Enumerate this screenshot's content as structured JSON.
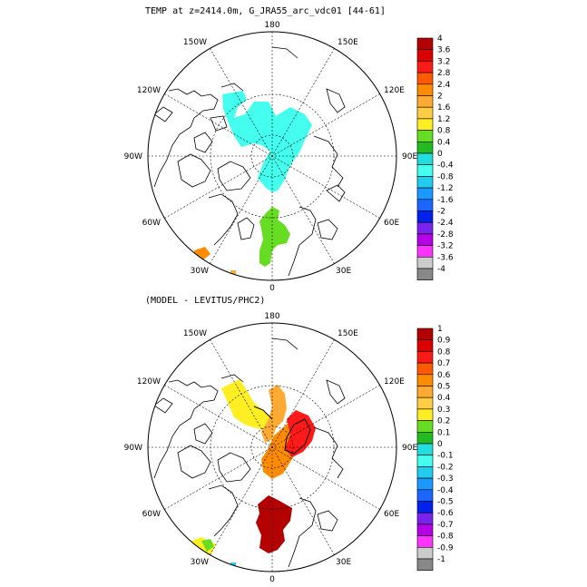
{
  "panels": [
    {
      "title": "TEMP at z=2414.0m, G_JRA55_arc_vdc01 [44-61]",
      "lon_labels": {
        "n": "180",
        "s": "0",
        "w": "90W",
        "e": "90E",
        "nw2": "150W",
        "nw1": "120W",
        "sw1": "60W",
        "sw2": "30W",
        "ne2": "150E",
        "ne1": "120E",
        "se1": "60E",
        "se2": "30E"
      },
      "colorbar": {
        "labels": [
          "4",
          "3.6",
          "3.2",
          "2.8",
          "2.4",
          "2",
          "1.6",
          "1.2",
          "0.8",
          "0.4",
          "0",
          "-0.4",
          "-0.8",
          "-1.2",
          "-1.6",
          "-2",
          "-2.4",
          "-2.8",
          "-3.2",
          "-3.6",
          "-4"
        ],
        "colors": [
          "#b30000",
          "#dd0000",
          "#ff1a1a",
          "#ff5a00",
          "#ff8c00",
          "#ffaa33",
          "#ffcc44",
          "#ffee22",
          "#66dd22",
          "#22bb22",
          "#22dddd",
          "#44ffee",
          "#22ccee",
          "#1a99ff",
          "#1a66ff",
          "#0022ee",
          "#7a22ee",
          "#b600e6",
          "#ff33ff",
          "#cccccc",
          "#888888"
        ]
      }
    },
    {
      "title": "(MODEL - LEVITUS/PHC2)",
      "lon_labels": {
        "n": "180",
        "s": "0",
        "w": "90W",
        "e": "90E",
        "nw2": "150W",
        "nw1": "120W",
        "sw1": "60W",
        "sw2": "30W",
        "ne2": "150E",
        "ne1": "120E",
        "se1": "60E",
        "se2": "30E"
      },
      "colorbar": {
        "labels": [
          "1",
          "0.9",
          "0.8",
          "0.7",
          "0.6",
          "0.5",
          "0.4",
          "0.3",
          "0.2",
          "0.1",
          "0",
          "-0.1",
          "-0.2",
          "-0.3",
          "-0.4",
          "-0.5",
          "-0.6",
          "-0.7",
          "-0.8",
          "-0.9",
          "-1"
        ],
        "colors": [
          "#b30000",
          "#dd0000",
          "#ff1a1a",
          "#ff5a00",
          "#ff8c00",
          "#ffaa33",
          "#ffcc44",
          "#ffee22",
          "#66dd22",
          "#22bb22",
          "#22dddd",
          "#44ffee",
          "#22ccee",
          "#1a99ff",
          "#1a66ff",
          "#0022ee",
          "#7a22ee",
          "#b600e6",
          "#ff33ff",
          "#cccccc",
          "#888888"
        ]
      }
    }
  ]
}
